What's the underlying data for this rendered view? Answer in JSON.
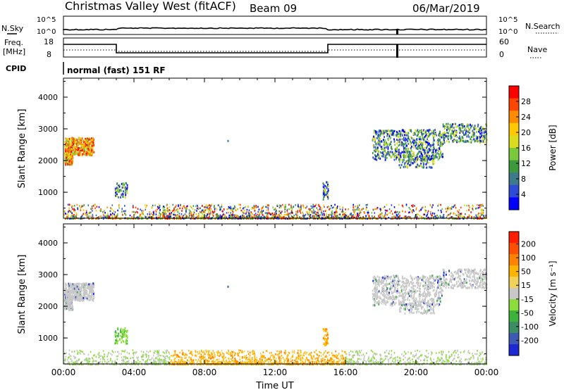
{
  "header": {
    "station": "Christmas Valley West (fitACF)",
    "beam": "Beam 09",
    "date": "06/Mar/2019"
  },
  "top_panels": {
    "nsky": {
      "label": "N.Sky",
      "ticks": [
        "10^5",
        "10^0"
      ]
    },
    "nsearch": {
      "label": "N.Search",
      "ticks": [
        "10^5",
        "10^0"
      ]
    },
    "freq": {
      "label_line1": "Freq.",
      "label_line2": "[MHz]",
      "ticks": [
        "18",
        "8"
      ]
    },
    "nave": {
      "label": "Nave",
      "ticks": [
        "60",
        "0"
      ]
    },
    "cpid": {
      "label": "CPID",
      "mode": "normal (fast) 151 RF"
    }
  },
  "chart_data": [
    {
      "type": "heatmap",
      "name": "power",
      "xlabel": "",
      "ylabel": "Slant Range [km]",
      "x_ticks": [
        "00:00",
        "04:00",
        "08:00",
        "12:00",
        "16:00",
        "20:00",
        "00:00"
      ],
      "y_ticks": [
        "1000",
        "2000",
        "3000",
        "4000"
      ],
      "ylim": [
        180,
        4600
      ],
      "colorbar": {
        "label": "Power [dB]",
        "ticks": [
          "4",
          "8",
          "12",
          "16",
          "20",
          "24",
          "28"
        ],
        "colors": [
          "#0000ff",
          "#2d4bd6",
          "#3c7a8c",
          "#3c9a3c",
          "#7ac83c",
          "#dcdc1e",
          "#ffc800",
          "#ff8c00",
          "#ff4600",
          "#ff0000"
        ]
      }
    },
    {
      "type": "heatmap",
      "name": "velocity",
      "xlabel": "Time UT",
      "ylabel": "Slant Range [km]",
      "x_ticks": [
        "00:00",
        "04:00",
        "08:00",
        "12:00",
        "16:00",
        "20:00",
        "00:00"
      ],
      "y_ticks": [
        "1000",
        "2000",
        "3000",
        "4000"
      ],
      "ylim": [
        180,
        4600
      ],
      "colorbar": {
        "label": "Velocity [m s⁻¹]",
        "ticks": [
          "200",
          "100",
          "50",
          "15",
          "-15",
          "-50",
          "-100",
          "-200"
        ],
        "colors": [
          "#1e28d2",
          "#3c5ab4",
          "#3c8c64",
          "#3cb43c",
          "#8cdc3c",
          "#c8c8c8",
          "#f0d25a",
          "#ffb400",
          "#ff8200",
          "#ff5000",
          "#ff1e00"
        ]
      }
    }
  ]
}
